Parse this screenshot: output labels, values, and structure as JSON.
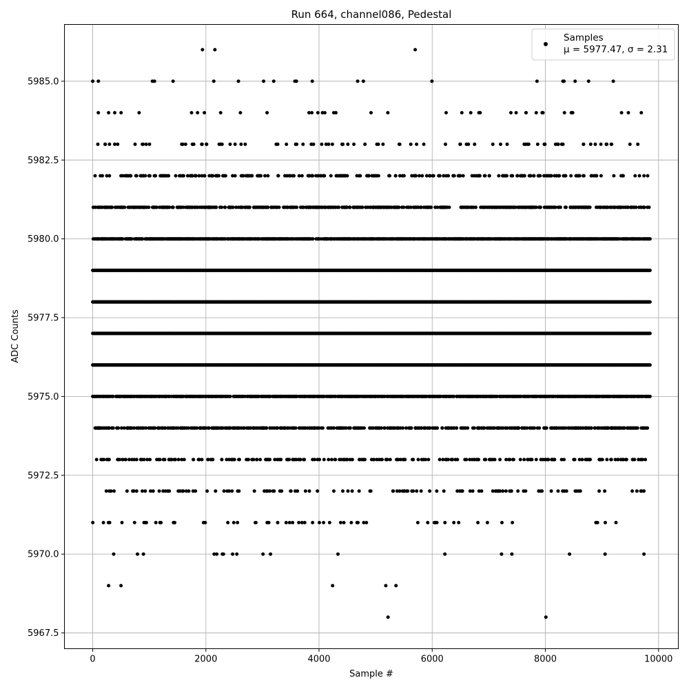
{
  "chart_data": {
    "type": "scatter",
    "title": "Run 664, channel086, Pedestal",
    "xlabel": "Sample #",
    "ylabel": "ADC Counts",
    "xlim": [
      -500,
      10350
    ],
    "ylim": [
      5967.0,
      5986.8
    ],
    "xticks": [
      0,
      2000,
      4000,
      6000,
      8000,
      10000
    ],
    "xtick_labels": [
      "0",
      "2000",
      "4000",
      "6000",
      "8000",
      "10000"
    ],
    "yticks": [
      5967.5,
      5970.0,
      5972.5,
      5975.0,
      5977.5,
      5980.0,
      5982.5,
      5985.0
    ],
    "ytick_labels": [
      "5967.5",
      "5970.0",
      "5972.5",
      "5975.0",
      "5977.5",
      "5980.0",
      "5982.5",
      "5985.0"
    ],
    "grid": true,
    "legend": {
      "placement": "top-right",
      "series_label": "Samples",
      "stats_label": "μ = 5977.47, σ = 2.31"
    },
    "marker_color": "#000000",
    "series": [
      {
        "name": "Samples",
        "n_samples": 9850,
        "x_range": [
          0,
          9850
        ],
        "mean": 5977.47,
        "std": 2.31,
        "level_density": [
          {
            "y": 5986,
            "density": 0.0003
          },
          {
            "y": 5985,
            "density": 0.0011
          },
          {
            "y": 5984,
            "density": 0.004
          },
          {
            "y": 5983,
            "density": 0.009
          },
          {
            "y": 5982,
            "density": 0.025
          },
          {
            "y": 5981,
            "density": 0.058
          },
          {
            "y": 5980,
            "density": 0.105
          },
          {
            "y": 5979,
            "density": 0.155
          },
          {
            "y": 5978,
            "density": 0.175
          },
          {
            "y": 5977,
            "density": 0.175
          },
          {
            "y": 5976,
            "density": 0.15
          },
          {
            "y": 5975,
            "density": 0.1
          },
          {
            "y": 5974,
            "density": 0.055
          },
          {
            "y": 5973,
            "density": 0.025
          },
          {
            "y": 5972,
            "density": 0.012
          },
          {
            "y": 5971,
            "density": 0.006
          },
          {
            "y": 5970,
            "density": 0.0018
          },
          {
            "y": 5969,
            "density": 0.0006
          },
          {
            "y": 5968,
            "density": 0.0002
          }
        ],
        "sparse_points": [
          {
            "x": 1940,
            "y": 5986
          },
          {
            "x": 2160,
            "y": 5986
          },
          {
            "x": 5700,
            "y": 5986
          },
          {
            "x": 0,
            "y": 5985
          },
          {
            "x": 100,
            "y": 5985
          },
          {
            "x": 1420,
            "y": 5985
          },
          {
            "x": 2140,
            "y": 5985
          },
          {
            "x": 3020,
            "y": 5985
          },
          {
            "x": 3200,
            "y": 5985
          },
          {
            "x": 3880,
            "y": 5985
          },
          {
            "x": 8310,
            "y": 5985
          },
          {
            "x": 8330,
            "y": 5985
          },
          {
            "x": 9200,
            "y": 5985
          },
          {
            "x": 280,
            "y": 5969
          },
          {
            "x": 500,
            "y": 5969
          },
          {
            "x": 4240,
            "y": 5969
          },
          {
            "x": 5180,
            "y": 5969
          },
          {
            "x": 5360,
            "y": 5969
          },
          {
            "x": 5220,
            "y": 5968
          },
          {
            "x": 8010,
            "y": 5968
          }
        ]
      }
    ]
  }
}
